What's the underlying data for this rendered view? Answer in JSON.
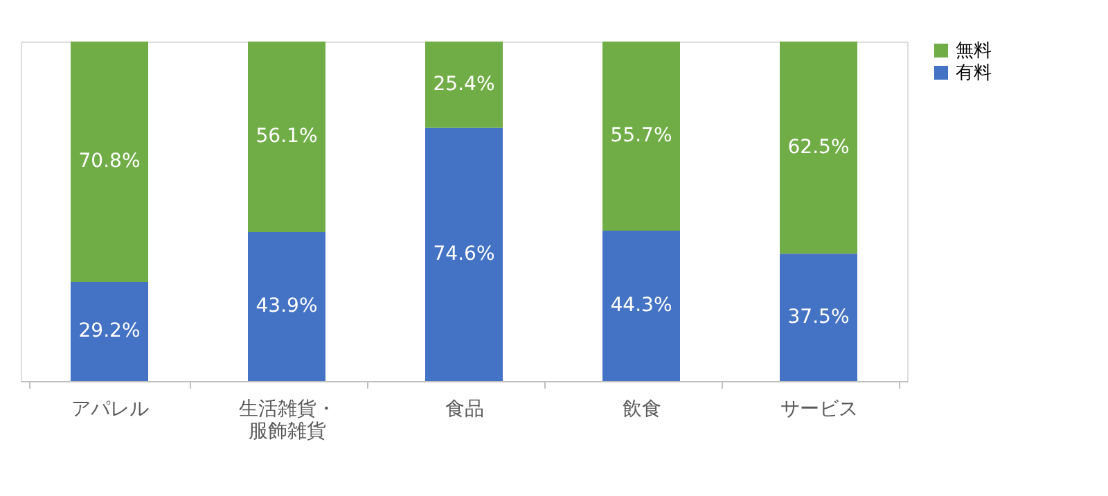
{
  "chart_data": {
    "type": "bar",
    "stacked": true,
    "categories": [
      "アパレル",
      "生活雑貨・服飾雑貨",
      "食品",
      "飲食",
      "サービス"
    ],
    "series": [
      {
        "name": "有料",
        "color": "#4472c4",
        "values": [
          29.2,
          43.9,
          74.6,
          44.3,
          37.5
        ],
        "value_labels": [
          "29.2%",
          "43.9%",
          "74.6%",
          "44.3%",
          "37.5%"
        ]
      },
      {
        "name": "無料",
        "color": "#70ad47",
        "values": [
          70.8,
          56.1,
          25.4,
          55.7,
          62.5
        ],
        "value_labels": [
          "70.8%",
          "56.1%",
          "25.4%",
          "55.7%",
          "62.5%"
        ]
      }
    ],
    "tick_labels": "x",
    "grid": false,
    "legend": "right"
  }
}
